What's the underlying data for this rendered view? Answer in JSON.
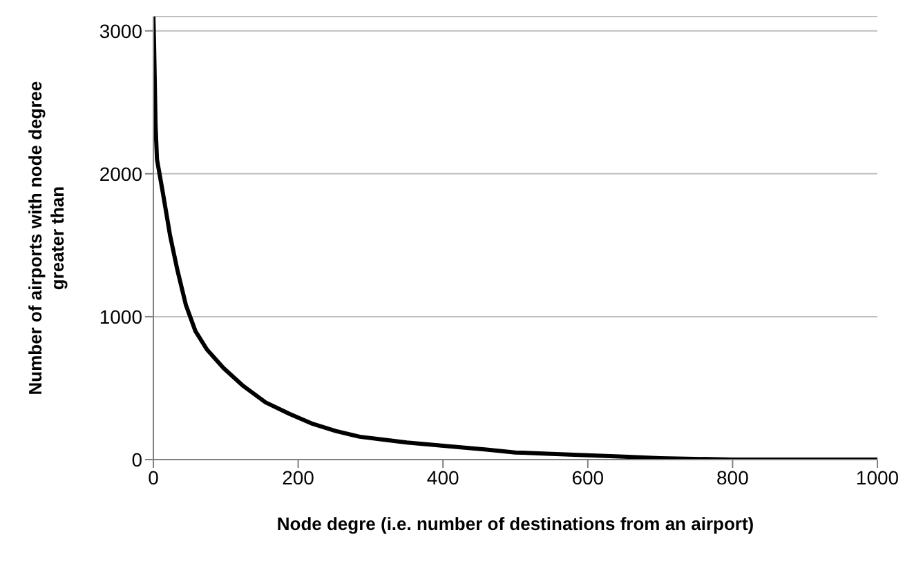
{
  "chart_data": {
    "type": "line",
    "xlabel": "Node degre (i.e. number of destinations from an airport)",
    "ylabel": "Number of airports with node degree greater than",
    "series": [
      {
        "color": "#000000",
        "x": [
          0,
          1,
          3,
          5,
          13,
          23,
          33,
          45,
          58,
          74,
          97,
          123,
          155,
          188,
          220,
          252,
          285,
          317,
          350,
          414,
          460,
          500,
          550,
          600,
          650,
          700,
          800,
          900,
          1000
        ],
        "values": [
          3100,
          2900,
          2340,
          2100,
          1870,
          1570,
          1330,
          1080,
          900,
          770,
          640,
          520,
          400,
          320,
          250,
          200,
          160,
          140,
          120,
          90,
          70,
          50,
          40,
          30,
          20,
          10,
          0,
          0,
          0
        ]
      }
    ],
    "xlim": [
      0,
      1000
    ],
    "xticks": [
      0,
      200,
      400,
      600,
      800,
      1000
    ],
    "ylim": [
      0,
      3100
    ],
    "yticks": [
      0,
      1000,
      2000,
      3000
    ],
    "grid": "y",
    "marker": "none",
    "line_style": "solid"
  }
}
